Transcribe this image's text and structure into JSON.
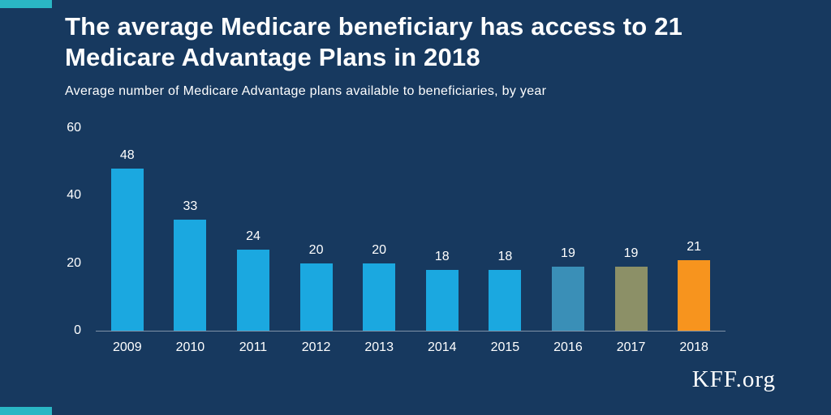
{
  "page": {
    "title_lines": {
      "line1": "The average Medicare beneficiary has access to 21",
      "line2": "Medicare Advantage Plans in 2018"
    },
    "subtitle": "Average number of Medicare Advantage plans available to beneficiaries, by year",
    "brand": "KFF.org"
  },
  "colors": {
    "background": "#17395f",
    "accent_teal": "#2ab6c4",
    "text": "#ffffff",
    "bar_default": "#1ba8e0",
    "bar_2016": "#3a8fb7",
    "bar_2017": "#8c9067",
    "bar_2018": "#f7941e"
  },
  "chart_data": {
    "type": "bar",
    "title": "The average Medicare beneficiary has access to 21 Medicare Advantage Plans in 2018",
    "subtitle": "Average number of Medicare Advantage plans available to beneficiaries, by year",
    "categories": [
      "2009",
      "2010",
      "2011",
      "2012",
      "2013",
      "2014",
      "2015",
      "2016",
      "2017",
      "2018"
    ],
    "values": [
      48,
      33,
      24,
      20,
      20,
      18,
      18,
      19,
      19,
      21
    ],
    "bar_colors": [
      "#1ba8e0",
      "#1ba8e0",
      "#1ba8e0",
      "#1ba8e0",
      "#1ba8e0",
      "#1ba8e0",
      "#1ba8e0",
      "#3a8fb7",
      "#8c9067",
      "#f7941e"
    ],
    "xlabel": "",
    "ylabel": "",
    "ylim": [
      0,
      60
    ],
    "yticks": [
      0,
      20,
      40,
      60
    ],
    "grid": false,
    "legend": "none",
    "value_labels": true
  }
}
